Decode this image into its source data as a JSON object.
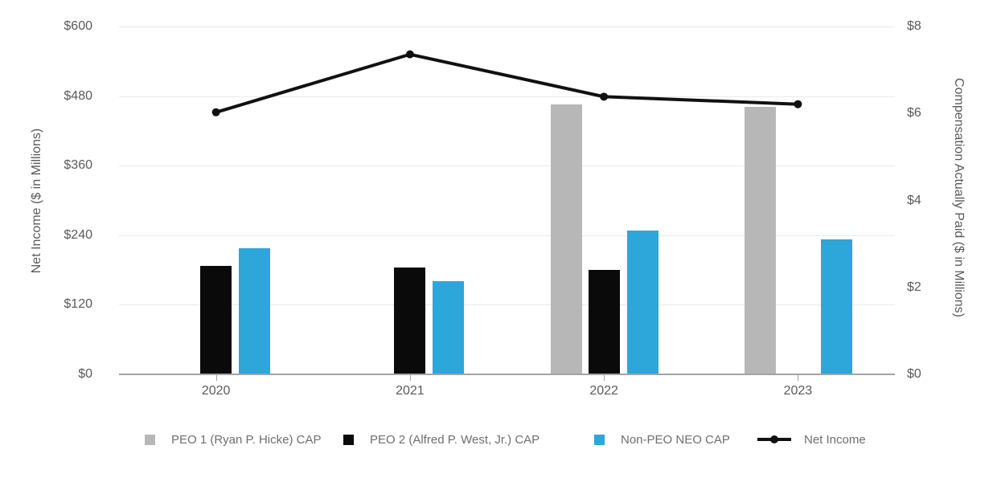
{
  "chart_data": {
    "type": "bar",
    "subtype": "grouped-bars-with-line-overlay-dual-axis",
    "categories": [
      "2020",
      "2021",
      "2022",
      "2023"
    ],
    "series": [
      {
        "name": "PEO 1  (Ryan P. Hicke) CAP",
        "type": "bar",
        "axis": "right",
        "color": "#b7b7b7",
        "values": [
          null,
          null,
          6.2,
          6.15
        ]
      },
      {
        "name": "PEO 2 (Alfred P. West, Jr.) CAP",
        "type": "bar",
        "axis": "right",
        "color": "#0a0a0a",
        "values": [
          2.5,
          2.45,
          2.4,
          null
        ]
      },
      {
        "name": "Non-PEO NEO CAP",
        "type": "bar",
        "axis": "right",
        "color": "#2da6da",
        "values": [
          2.9,
          2.15,
          3.3,
          3.1
        ]
      },
      {
        "name": "Net Income",
        "type": "line",
        "axis": "left",
        "color": "#111111",
        "values": [
          452,
          552,
          479,
          466
        ]
      }
    ],
    "left_axis": {
      "label": "Net Income ($ in Millions)",
      "tick_labels": [
        "$0",
        "$120",
        "$240",
        "$360",
        "$480",
        "$600"
      ],
      "tick_values": [
        0,
        120,
        240,
        360,
        480,
        600
      ],
      "range": [
        0,
        600
      ]
    },
    "right_axis": {
      "label": "Compensation Actually Paid ($ in Millions)",
      "tick_labels": [
        "$0",
        "$2",
        "$4",
        "$6",
        "$8"
      ],
      "tick_values": [
        0,
        2,
        4,
        6,
        8
      ],
      "range": [
        0,
        8
      ]
    },
    "grid": true,
    "legend_position": "bottom",
    "colors": {
      "gridline": "#e9e9e9",
      "axis_line": "#a3a3a3",
      "tick_text": "#5a5a5a",
      "legend_text": "#6e6e6e"
    }
  }
}
